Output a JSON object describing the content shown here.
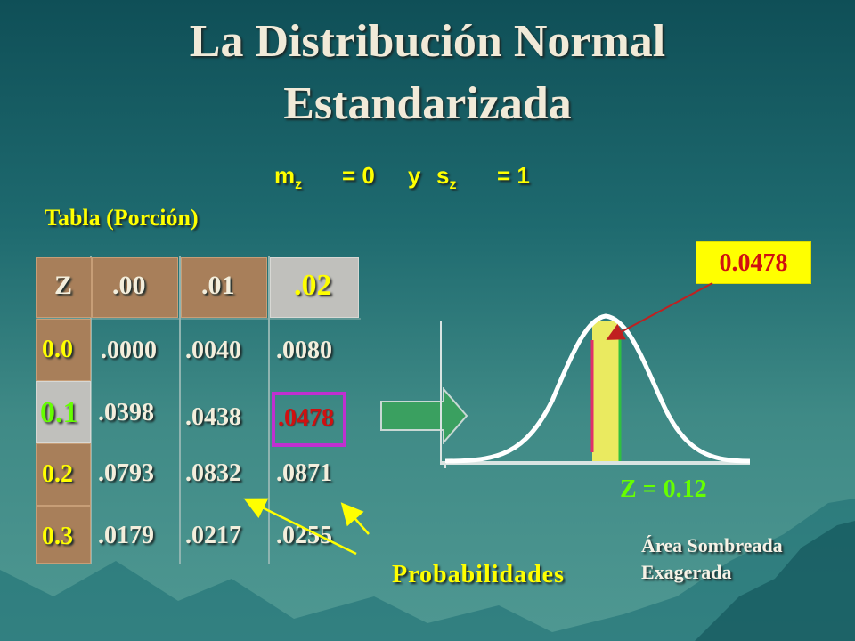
{
  "title": {
    "line1": "La Distribución Normal",
    "line2": "Estandarizada"
  },
  "formula": {
    "m": "m",
    "m_sub": "z",
    "eq1": "= 0",
    "y": "y",
    "s": "s",
    "s_sub": "z",
    "eq2": "= 1"
  },
  "tabla_label": "Tabla (Porción)",
  "table": {
    "header": [
      "Z",
      ".00",
      ".01",
      ".02"
    ],
    "rows": [
      {
        "z": "0.0",
        "values": [
          ".0000",
          ".0040",
          ".0080"
        ]
      },
      {
        "z": "0.1",
        "values": [
          ".0398",
          ".0438",
          ".0478"
        ]
      },
      {
        "z": "0.2",
        "values": [
          ".0793",
          ".0832",
          ".0871"
        ]
      },
      {
        "z": "0.3",
        "values": [
          ".0179",
          ".0217",
          ".0255"
        ]
      }
    ]
  },
  "value_box": "0.0478",
  "z_eq": "Z = 0.12",
  "probabilidades": "Probabilidades",
  "area_note": {
    "line1": "Área Sombreada",
    "line2": "Exagerada"
  },
  "colors": {
    "title": "#f1ead8",
    "accent_yellow": "#ffff00",
    "header_brown": "#a87f5a",
    "highlight_red": "#d01010",
    "highlight_box": "#c030d0",
    "arrow_green": "#3aa060",
    "shade_yellow": "#eaea60",
    "z_green": "#66ff00"
  }
}
